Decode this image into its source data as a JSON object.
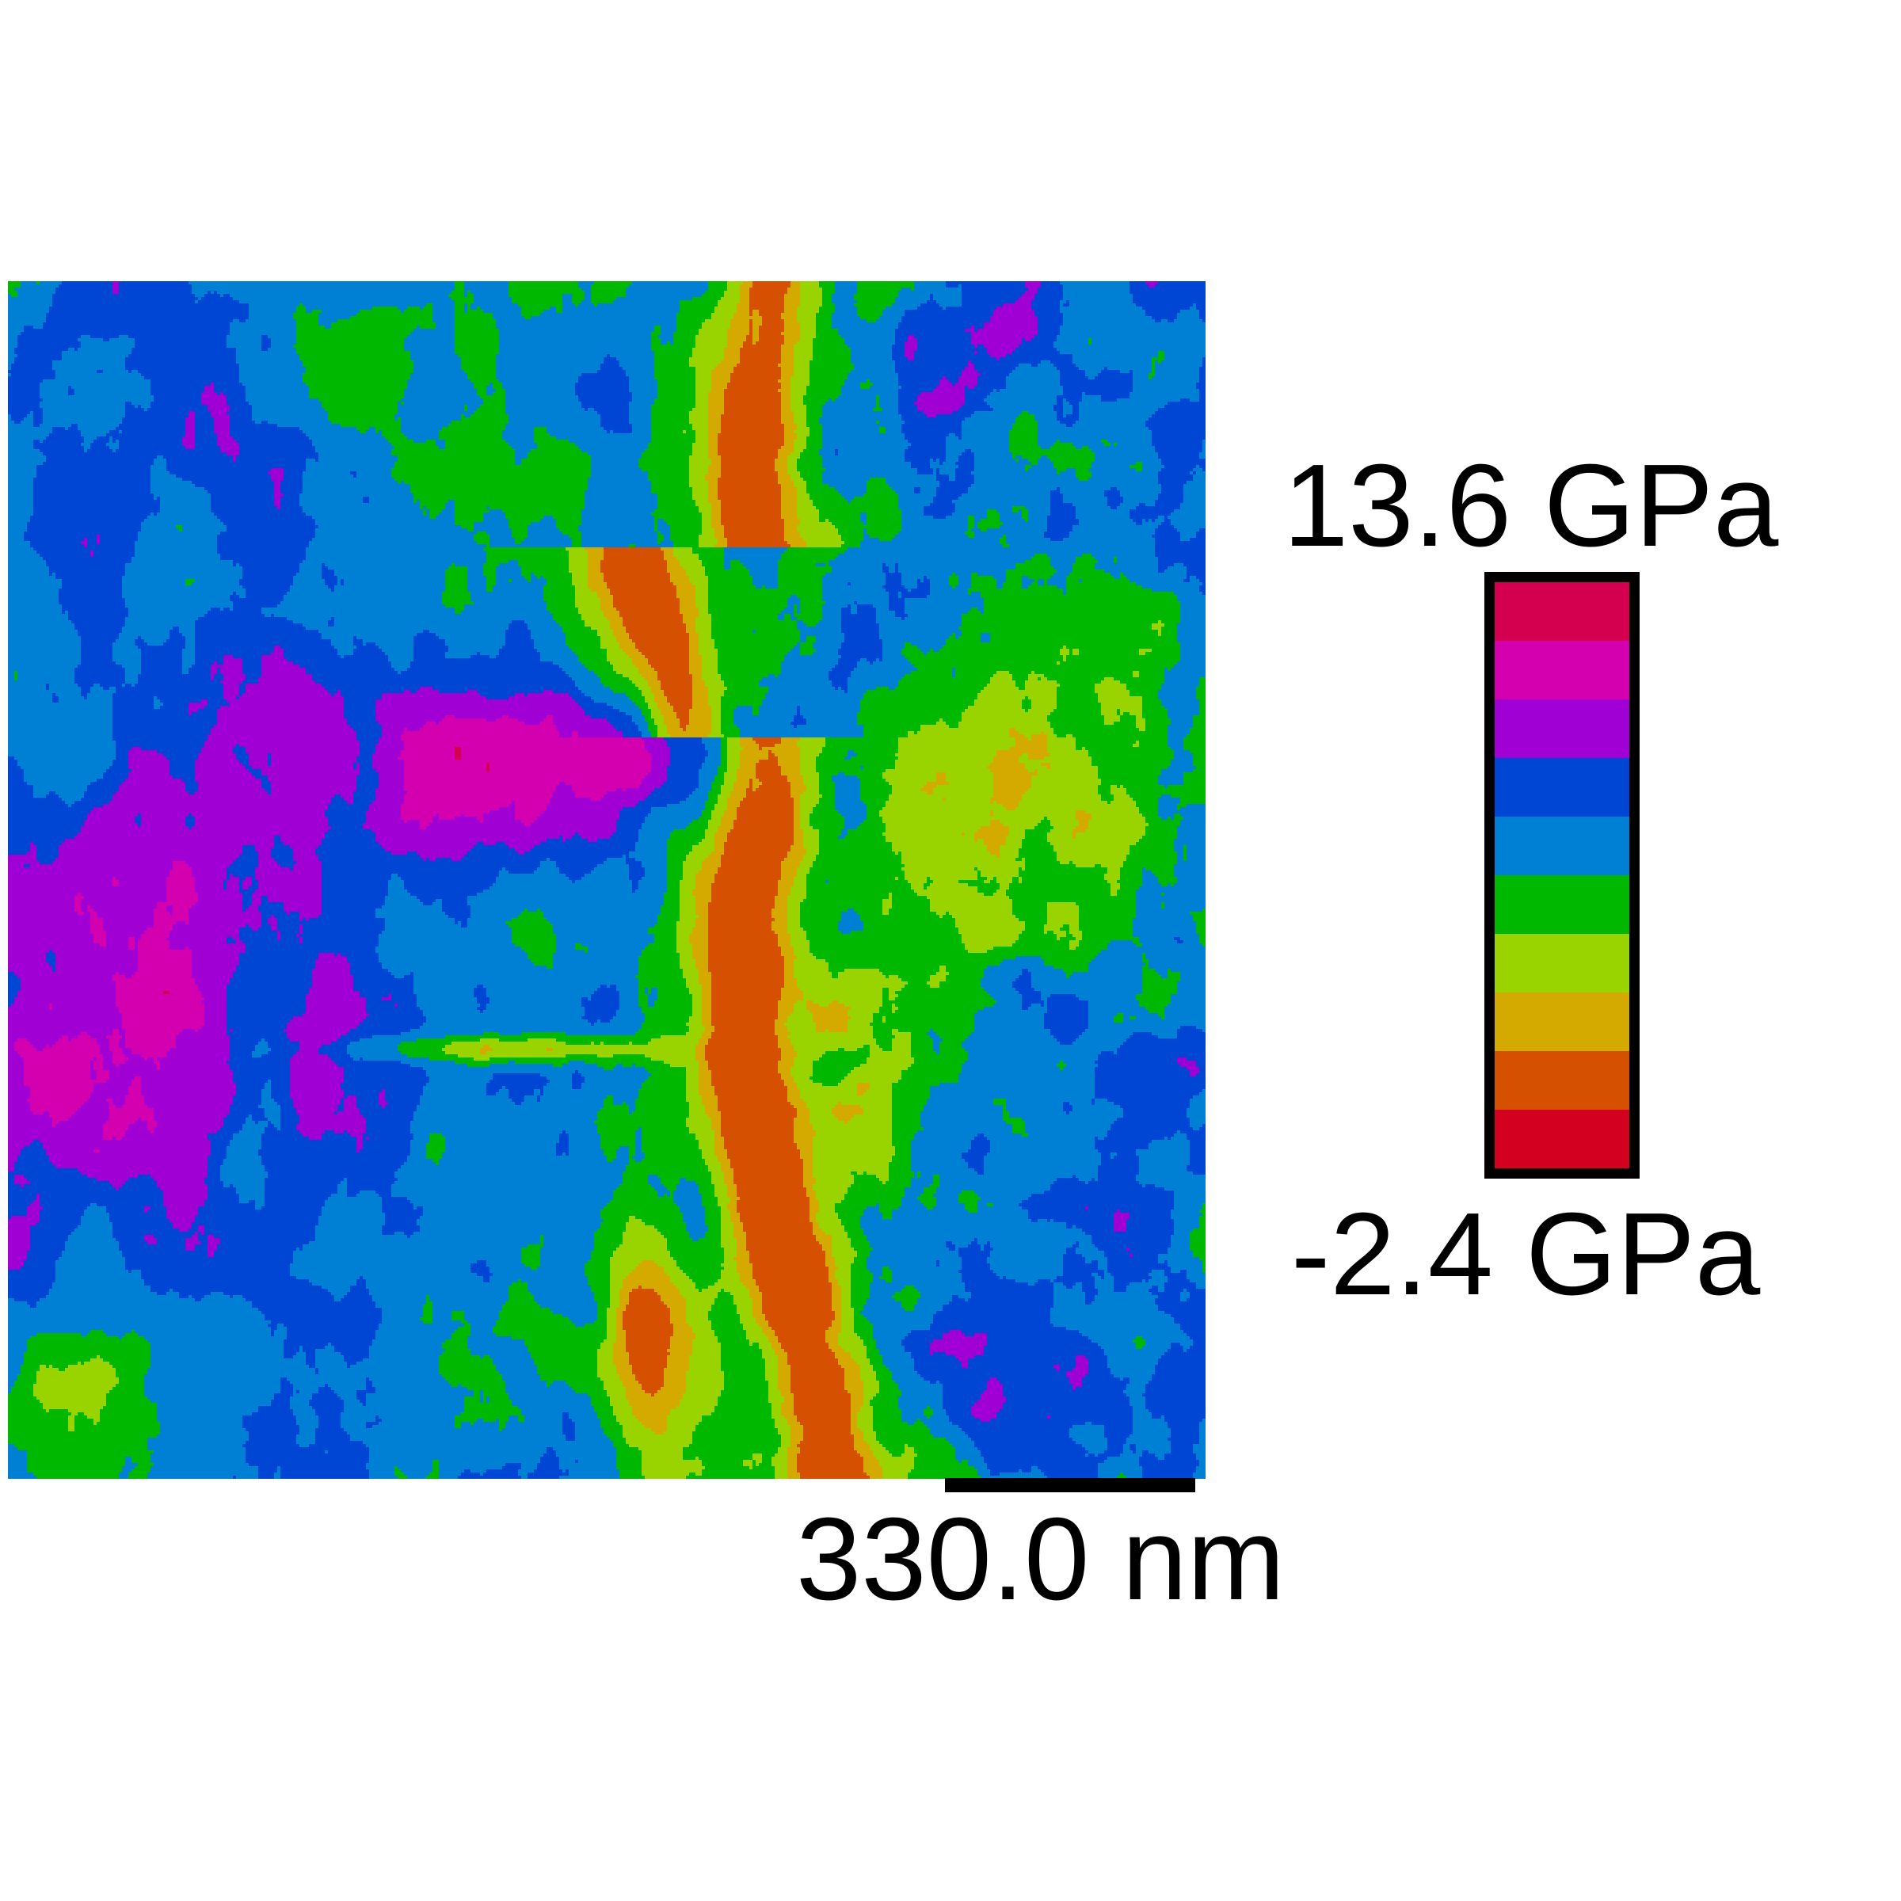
{
  "image": {
    "description_type": "AFM modulus map",
    "palette": [
      "#d4001f",
      "#d55000",
      "#d4a900",
      "#9ad400",
      "#00b800",
      "#0080d4",
      "#0046d4",
      "#a000d4",
      "#d400b0",
      "#d4004f"
    ]
  },
  "colorbar": {
    "max_label": "13.6 GPa",
    "min_label": "-2.4 GPa",
    "colors_top_to_bottom": [
      "#d4004f",
      "#d400b0",
      "#a000d4",
      "#0046d4",
      "#0080d4",
      "#00b800",
      "#9ad400",
      "#d4a900",
      "#d55000",
      "#d4001f"
    ]
  },
  "scale_bar": {
    "label": "330.0 nm"
  }
}
